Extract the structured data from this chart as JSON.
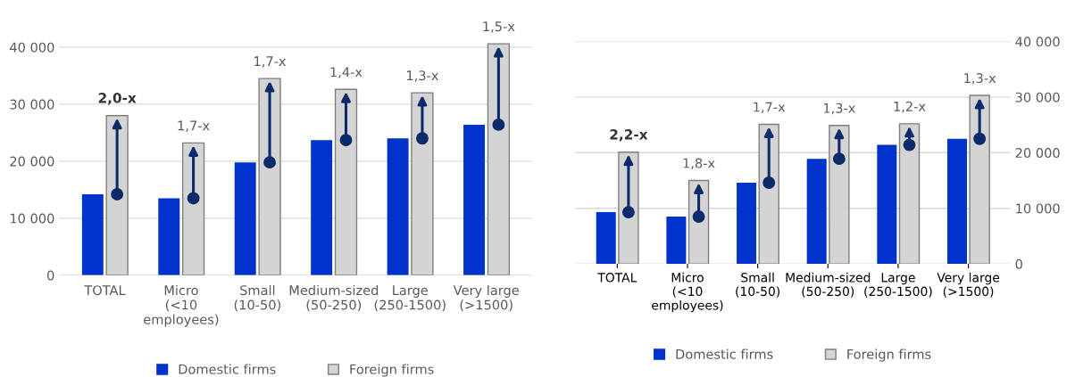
{
  "chart_data": [
    {
      "type": "bar",
      "categories": [
        "TOTAL",
        "Micro\n(<10\nemployees)",
        "Small\n(10-50)",
        "Medium-sized\n(50-250)",
        "Large\n(250-1500)",
        "Very large\n(>1500)"
      ],
      "series": [
        {
          "name": "Domestic firms",
          "color": "#0033cc",
          "values": [
            14200,
            13500,
            19800,
            23700,
            24000,
            26400
          ]
        },
        {
          "name": "Foreign firms",
          "color": "#d4d4d4",
          "values": [
            28000,
            23200,
            34500,
            32600,
            32000,
            40600
          ]
        }
      ],
      "ylim": [
        0,
        41000
      ],
      "yticks": [
        {
          "value": 0,
          "label": "0"
        },
        {
          "value": 10000,
          "label": "10 000"
        },
        {
          "value": 20000,
          "label": "20 000"
        },
        {
          "value": 30000,
          "label": "30 000"
        },
        {
          "value": 40000,
          "label": "40 000"
        }
      ],
      "grid": "y",
      "legend": "bottom",
      "annotations": [
        {
          "text": "2,0-x",
          "x": "TOTAL",
          "y": 28000
        },
        {
          "text": "1,7-x",
          "x": "Micro\n(<10\nemployees)",
          "y": 23200
        },
        {
          "text": "1,7-x",
          "x": "Small\n(10-50)",
          "y": 34500
        },
        {
          "text": "1,4-x",
          "x": "Medium-sized\n(50-250)",
          "y": 32600
        },
        {
          "text": "1,3-x",
          "x": "Large\n(250-1500)",
          "y": 32000
        },
        {
          "text": "1,5-x",
          "x": "Very large\n(>1500)",
          "y": 40600
        }
      ]
    },
    {
      "type": "bar",
      "categories": [
        "TOTAL",
        "Micro\n(<10\nemployees)",
        "Small\n(10-50)",
        "Medium-sized\n(50-250)",
        "Large\n(250-1500)",
        "Very large\n(>1500)"
      ],
      "series": [
        {
          "name": "Domestic firms",
          "color": "#0033cc",
          "values": [
            9300,
            8500,
            14600,
            18900,
            21400,
            22500
          ],
          "axis": "y2"
        },
        {
          "name": "Foreign firms",
          "color": "#d4d4d4",
          "values": [
            20100,
            15000,
            25100,
            24900,
            25200,
            30300
          ],
          "axis": "y2"
        }
      ],
      "y2lim": [
        0,
        40000
      ],
      "y2ticks": [
        {
          "value": 0,
          "label": "0"
        },
        {
          "value": 10000,
          "label": "10 000"
        },
        {
          "value": 20000,
          "label": "20 000"
        },
        {
          "value": 30000,
          "label": "30 000"
        },
        {
          "value": 40000,
          "label": "40 000"
        }
      ],
      "grid": "y",
      "legend": "bottom",
      "annotations": [
        "2,2-x",
        "1,8-x",
        "1,7-x",
        "1,3-x",
        "1,2-x",
        "1,3-x"
      ]
    }
  ]
}
